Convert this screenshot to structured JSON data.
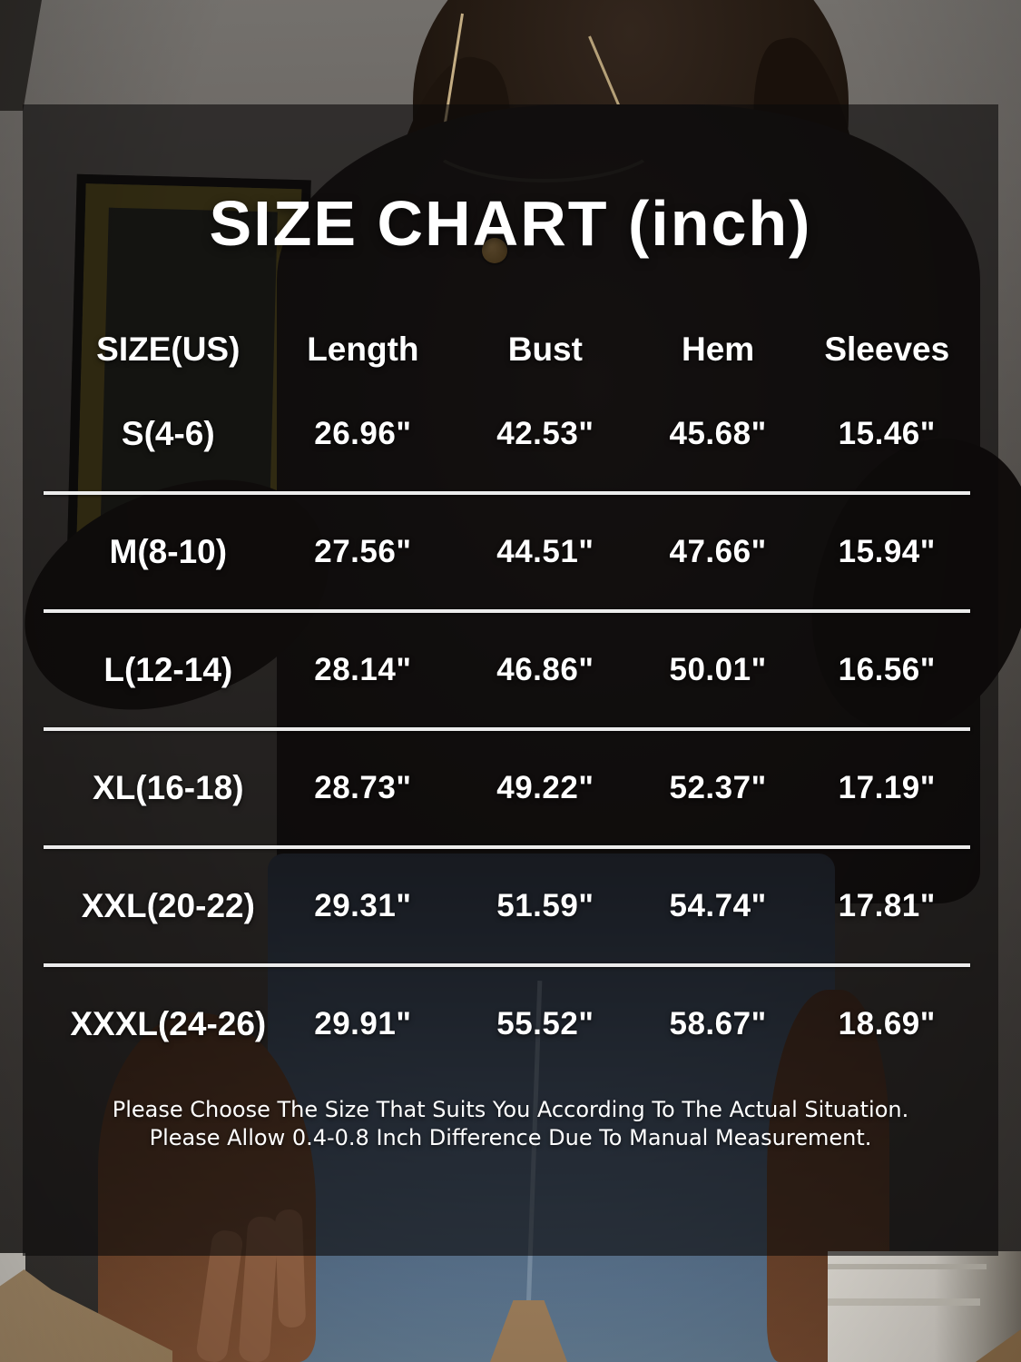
{
  "title": "SIZE CHART (inch)",
  "table": {
    "headers": [
      "SIZE(US)",
      "Length",
      "Bust",
      "Hem",
      "Sleeves"
    ],
    "rows": [
      [
        "S(4-6)",
        "26.96\"",
        "42.53\"",
        "45.68\"",
        "15.46\""
      ],
      [
        "M(8-10)",
        "27.56\"",
        "44.51\"",
        "47.66\"",
        "15.94\""
      ],
      [
        "L(12-14)",
        "28.14\"",
        "46.86\"",
        "50.01\"",
        "16.56\""
      ],
      [
        "XL(16-18)",
        "28.73\"",
        "49.22\"",
        "52.37\"",
        "17.19\""
      ],
      [
        "XXL(20-22)",
        "29.31\"",
        "51.59\"",
        "54.74\"",
        "17.81\""
      ],
      [
        "XXXL(24-26)",
        "29.91\"",
        "55.52\"",
        "58.67\"",
        "18.69\""
      ]
    ]
  },
  "footer": {
    "line1": "Please Choose The Size That Suits You According To The Actual Situation.",
    "line2": "Please Allow 0.4-0.8 Inch Difference Due To Manual Measurement."
  },
  "chart_data": {
    "type": "table",
    "title": "SIZE CHART (inch)",
    "unit": "inch",
    "columns": [
      "SIZE(US)",
      "Length",
      "Bust",
      "Hem",
      "Sleeves"
    ],
    "rows": [
      {
        "size": "S(4-6)",
        "length": 26.96,
        "bust": 42.53,
        "hem": 45.68,
        "sleeves": 15.46
      },
      {
        "size": "M(8-10)",
        "length": 27.56,
        "bust": 44.51,
        "hem": 47.66,
        "sleeves": 15.94
      },
      {
        "size": "L(12-14)",
        "length": 28.14,
        "bust": 46.86,
        "hem": 50.01,
        "sleeves": 16.56
      },
      {
        "size": "XL(16-18)",
        "length": 28.73,
        "bust": 49.22,
        "hem": 52.37,
        "sleeves": 17.19
      },
      {
        "size": "XXL(20-22)",
        "length": 29.31,
        "bust": 51.59,
        "hem": 54.74,
        "sleeves": 17.81
      },
      {
        "size": "XXXL(24-26)",
        "length": 29.91,
        "bust": 55.52,
        "hem": 58.67,
        "sleeves": 18.69
      }
    ]
  },
  "colors": {
    "text": "#ffffff",
    "divider": "#ececec",
    "overlay": "rgba(12,10,10,0.62)",
    "pendant_gold": "#b98f4e",
    "denim": "#5a7088",
    "floor_wood": "#b2946f",
    "wall_gray": "#6f6c68"
  }
}
